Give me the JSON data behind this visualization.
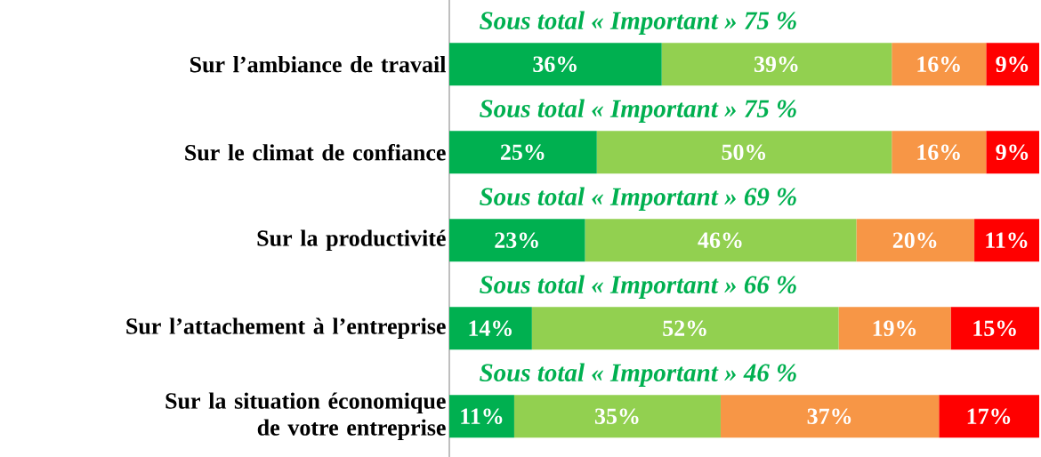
{
  "chart_data": {
    "type": "bar",
    "orientation": "horizontal",
    "stacked": true,
    "xlim": [
      0,
      100
    ],
    "tick_labels": "y",
    "categories": [
      "Sur l’ambiance de travail",
      "Sur le climat de confiance",
      "Sur la productivité",
      "Sur l’attachement à l’entreprise",
      "Sur la situation économique de votre entreprise"
    ],
    "series": [
      {
        "color": "#00b050",
        "values": [
          36,
          25,
          23,
          14,
          11
        ],
        "value_labels": [
          "36%",
          "25%",
          "23%",
          "14%",
          "11%"
        ]
      },
      {
        "color": "#92d050",
        "values": [
          39,
          50,
          46,
          52,
          35
        ],
        "value_labels": [
          "39%",
          "50%",
          "46%",
          "52%",
          "35%"
        ]
      },
      {
        "color": "#f79646",
        "values": [
          16,
          16,
          20,
          19,
          37
        ],
        "value_labels": [
          "16%",
          "16%",
          "20%",
          "19%",
          "37%"
        ]
      },
      {
        "color": "#ff0000",
        "values": [
          9,
          9,
          11,
          15,
          17
        ],
        "value_labels": [
          "9%",
          "9%",
          "11%",
          "15%",
          "17%"
        ]
      }
    ],
    "annotations": [
      "Sous total « Important » 75 %",
      "Sous total « Important » 75 %",
      "Sous total « Important » 69 %",
      "Sous total « Important » 66 %",
      "Sous total « Important » 46 %"
    ]
  }
}
